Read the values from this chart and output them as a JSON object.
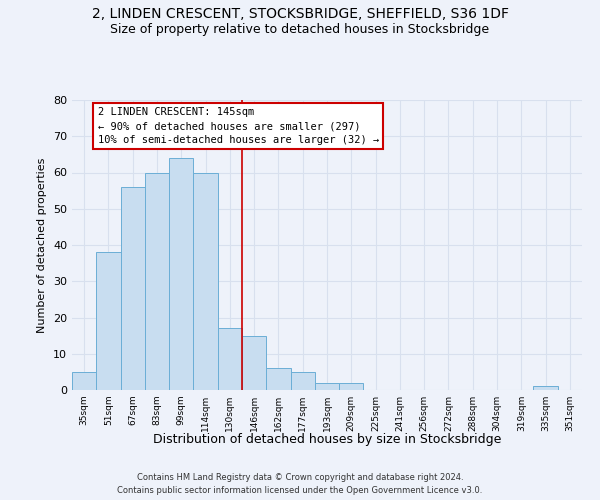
{
  "title": "2, LINDEN CRESCENT, STOCKSBRIDGE, SHEFFIELD, S36 1DF",
  "subtitle": "Size of property relative to detached houses in Stocksbridge",
  "xlabel": "Distribution of detached houses by size in Stocksbridge",
  "ylabel": "Number of detached properties",
  "bar_labels": [
    "35sqm",
    "51sqm",
    "67sqm",
    "83sqm",
    "99sqm",
    "114sqm",
    "130sqm",
    "146sqm",
    "162sqm",
    "177sqm",
    "193sqm",
    "209sqm",
    "225sqm",
    "241sqm",
    "256sqm",
    "272sqm",
    "288sqm",
    "304sqm",
    "319sqm",
    "335sqm",
    "351sqm"
  ],
  "bar_values": [
    5,
    38,
    56,
    60,
    64,
    60,
    17,
    15,
    6,
    5,
    2,
    2,
    0,
    0,
    0,
    0,
    0,
    0,
    0,
    1,
    0
  ],
  "bar_color": "#c8ddf0",
  "bar_edge_color": "#6baed6",
  "vline_x_idx": 7,
  "vline_color": "#cc0000",
  "annotation_line1": "2 LINDEN CRESCENT: 145sqm",
  "annotation_line2": "← 90% of detached houses are smaller (297)",
  "annotation_line3": "10% of semi-detached houses are larger (32) →",
  "annotation_box_color": "#ffffff",
  "annotation_box_edgecolor": "#cc0000",
  "ylim": [
    0,
    80
  ],
  "yticks": [
    0,
    10,
    20,
    30,
    40,
    50,
    60,
    70,
    80
  ],
  "footer_line1": "Contains HM Land Registry data © Crown copyright and database right 2024.",
  "footer_line2": "Contains public sector information licensed under the Open Government Licence v3.0.",
  "bg_color": "#eef2fa",
  "grid_color": "#d8e0ee",
  "title_fontsize": 10,
  "subtitle_fontsize": 9,
  "title_fontweight": "normal"
}
